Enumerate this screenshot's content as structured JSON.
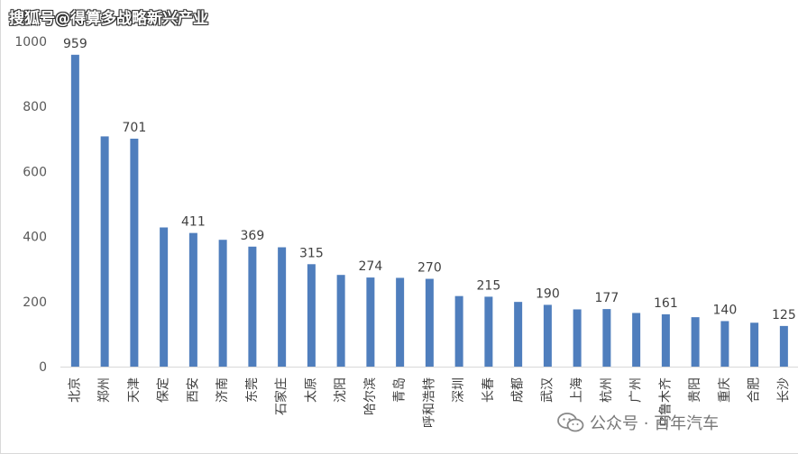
{
  "watermarks": {
    "top": "搜狐号@得算多战略新兴产业",
    "bottom": "公众号 · 百年汽车",
    "icon": "wechat-icon"
  },
  "chart_data": {
    "type": "bar",
    "title": "",
    "xlabel": "",
    "ylabel": "",
    "ylim": [
      0,
      1000
    ],
    "yticks": [
      0,
      200,
      400,
      600,
      800,
      1000
    ],
    "grid": false,
    "legend": "none",
    "bar_color": "#4f7ebd",
    "categories": [
      "北京",
      "郑州",
      "天津",
      "保定",
      "西安",
      "济南",
      "东莞",
      "石家庄",
      "太原",
      "沈阳",
      "哈尔滨",
      "青岛",
      "呼和浩特",
      "深圳",
      "长春",
      "成都",
      "武汉",
      "上海",
      "杭州",
      "广州",
      "乌鲁木齐",
      "贵阳",
      "重庆",
      "合肥",
      "长沙"
    ],
    "values": [
      959,
      708,
      701,
      428,
      411,
      390,
      369,
      367,
      315,
      282,
      274,
      273,
      270,
      217,
      215,
      199,
      190,
      176,
      177,
      165,
      161,
      152,
      140,
      135,
      125
    ],
    "data_labels": [
      {
        "index": 0,
        "text": "959"
      },
      {
        "index": 2,
        "text": "701"
      },
      {
        "index": 4,
        "text": "411"
      },
      {
        "index": 6,
        "text": "369"
      },
      {
        "index": 8,
        "text": "315"
      },
      {
        "index": 10,
        "text": "274"
      },
      {
        "index": 12,
        "text": "270"
      },
      {
        "index": 14,
        "text": "215"
      },
      {
        "index": 16,
        "text": "190"
      },
      {
        "index": 18,
        "text": "177"
      },
      {
        "index": 20,
        "text": "161"
      },
      {
        "index": 22,
        "text": "140"
      },
      {
        "index": 24,
        "text": "125"
      }
    ]
  }
}
